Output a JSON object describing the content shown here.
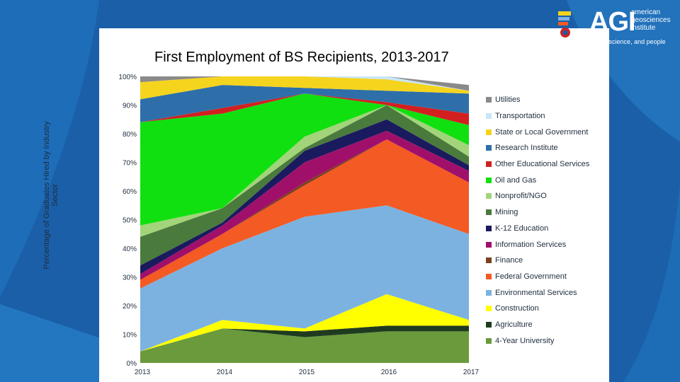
{
  "slide": {
    "title": "First Employment of BS Recipients, 2013-2017"
  },
  "logo": {
    "name": "AGI",
    "subtitle_lines": [
      "american",
      "geosciences",
      "institute"
    ],
    "tagline": "connecting earth, science, and people"
  },
  "chart_data": {
    "type": "area",
    "stacked": true,
    "title": "First Employment of BS Recipients, 2013-2017",
    "xlabel": "",
    "ylabel": "Percentage of Graduates Hired by Industry Sector",
    "ylim": [
      0,
      100
    ],
    "y_ticks": [
      "0%",
      "10%",
      "20%",
      "30%",
      "40%",
      "50%",
      "60%",
      "70%",
      "80%",
      "90%",
      "100%"
    ],
    "categories": [
      "2013",
      "2014",
      "2015",
      "2016",
      "2017"
    ],
    "series": [
      {
        "name": "4-Year University",
        "color": "#6a9a3c",
        "values": [
          4,
          12,
          9,
          11,
          11
        ]
      },
      {
        "name": "Agriculture",
        "color": "#1f3b1f",
        "values": [
          0,
          0,
          2,
          2,
          2
        ]
      },
      {
        "name": "Construction",
        "color": "#ffff00",
        "values": [
          0,
          3,
          1,
          11,
          2
        ]
      },
      {
        "name": "Environmental Services",
        "color": "#7cb2e0",
        "values": [
          22,
          25,
          39,
          31,
          30
        ]
      },
      {
        "name": "Federal Government",
        "color": "#f45a23",
        "values": [
          3,
          5,
          11,
          23,
          18
        ]
      },
      {
        "name": "Finance",
        "color": "#7a4020",
        "values": [
          0,
          0,
          1,
          0,
          0
        ]
      },
      {
        "name": "Information Services",
        "color": "#a0106a",
        "values": [
          2,
          3,
          7,
          3,
          4
        ]
      },
      {
        "name": "K-12 Education",
        "color": "#1a1a5e",
        "values": [
          3,
          1,
          4,
          4,
          2
        ]
      },
      {
        "name": "Mining",
        "color": "#4a7a3c",
        "values": [
          10,
          5,
          1,
          5,
          3
        ]
      },
      {
        "name": "Nonprofit/NGO",
        "color": "#a2d47a",
        "values": [
          4,
          0,
          4,
          0,
          4
        ]
      },
      {
        "name": "Oil and Gas",
        "color": "#10e010",
        "values": [
          36,
          33,
          15,
          0,
          7
        ]
      },
      {
        "name": "Other Educational Services",
        "color": "#d22020",
        "values": [
          0,
          2,
          0,
          1,
          4
        ]
      },
      {
        "name": "Research Institute",
        "color": "#2e6faa",
        "values": [
          8,
          8,
          2,
          4,
          7
        ]
      },
      {
        "name": "State or Local Government",
        "color": "#f5d41e",
        "values": [
          6,
          3,
          4,
          4,
          1
        ]
      },
      {
        "name": "Transportation",
        "color": "#c8e6f8",
        "values": [
          0,
          0,
          0,
          1,
          0
        ]
      },
      {
        "name": "Utilities",
        "color": "#8a8a8a",
        "values": [
          2,
          0,
          0,
          0,
          2
        ]
      }
    ],
    "legend_order": [
      "Utilities",
      "Transportation",
      "State or Local Government",
      "Research Institute",
      "Other Educational Services",
      "Oil and Gas",
      "Nonprofit/NGO",
      "Mining",
      "K-12 Education",
      "Information Services",
      "Finance",
      "Federal Government",
      "Environmental Services",
      "Construction",
      "Agriculture",
      "4-Year University"
    ],
    "legend_position": "right"
  }
}
